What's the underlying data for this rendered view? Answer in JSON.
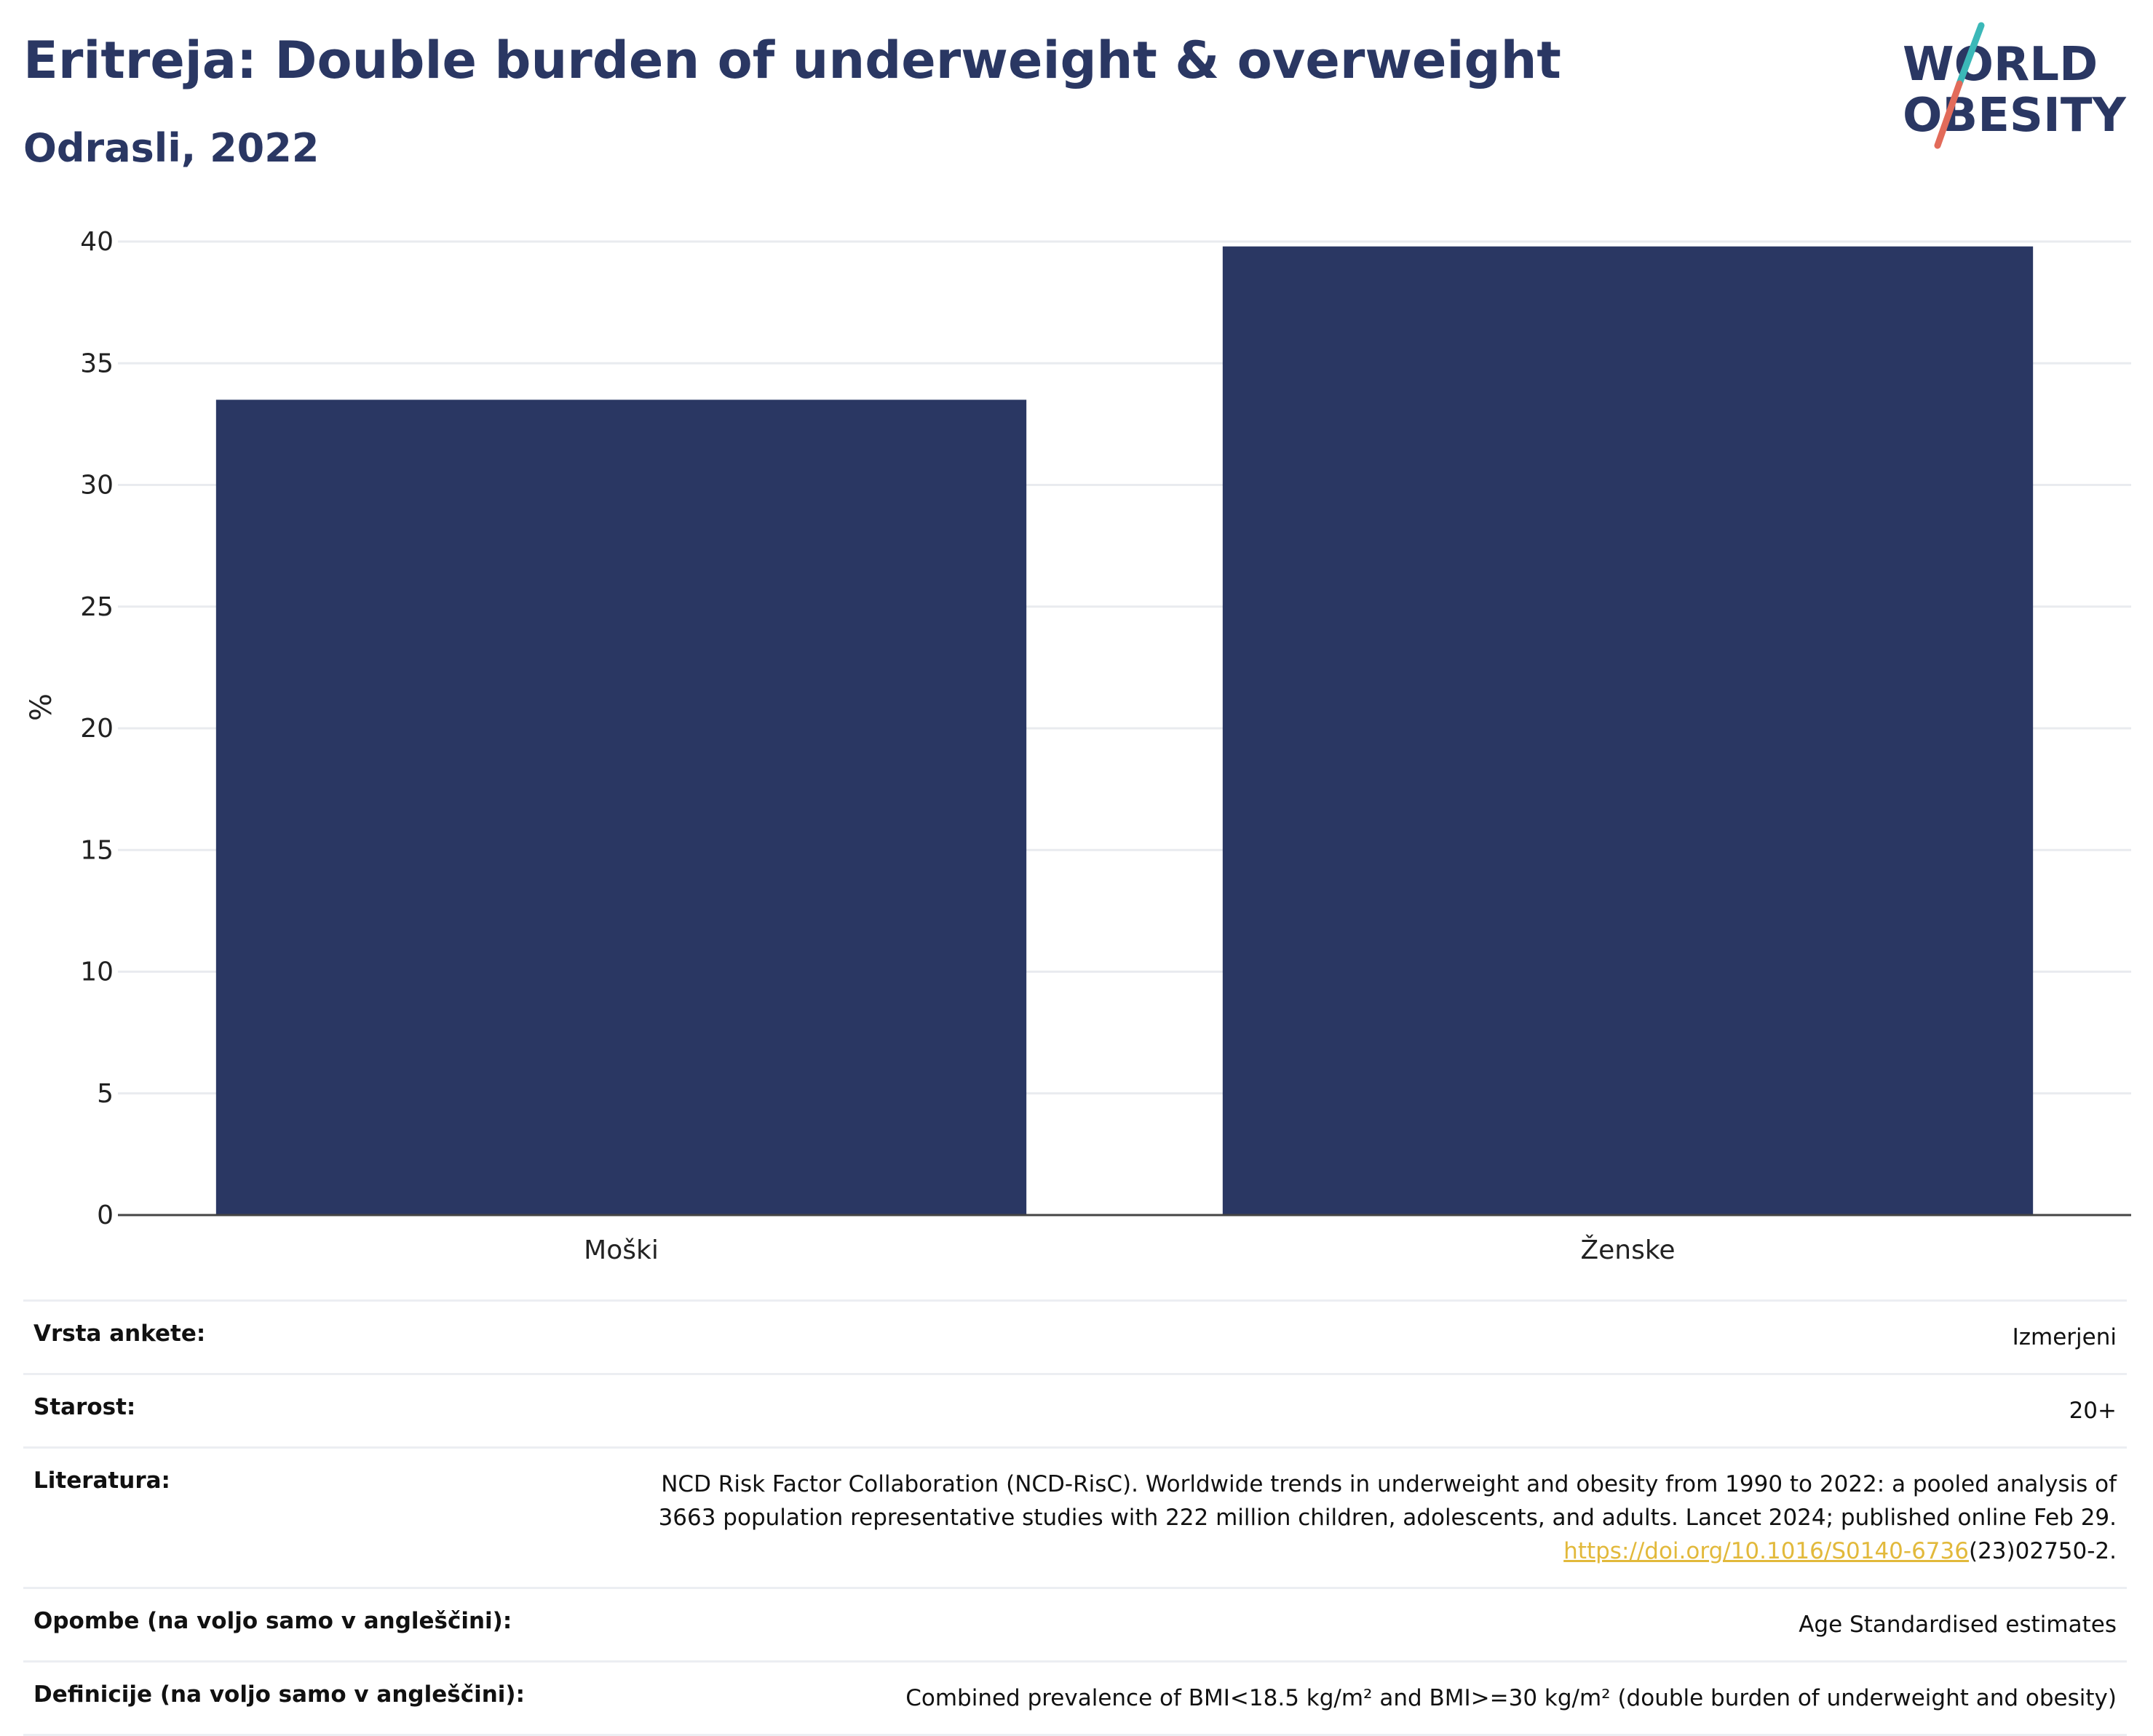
{
  "header": {
    "title": "Eritreja: Double burden of underweight & overweight",
    "subtitle": "Odrasli, 2022"
  },
  "logo": {
    "line1": "WORLD",
    "line2": "OBESITY",
    "colors": {
      "text": "#2a3763",
      "slash_top": "#3bb8b8",
      "slash_bottom": "#e26b5a"
    }
  },
  "chart_data": {
    "type": "bar",
    "categories": [
      "Moški",
      "Ženske"
    ],
    "values": [
      33.5,
      39.8
    ],
    "ylabel": "%",
    "xlabel": "",
    "ylim": [
      0,
      40
    ],
    "yticks": [
      0,
      5,
      10,
      15,
      20,
      25,
      30,
      35,
      40
    ],
    "grid": true,
    "bar_color": "#2a3763"
  },
  "meta": {
    "rows": [
      {
        "key": "Vrsta ankete:",
        "value": "Izmerjeni"
      },
      {
        "key": "Starost:",
        "value": "20+"
      },
      {
        "key": "Literatura:",
        "value_line1": "NCD Risk Factor Collaboration (NCD-RisC). Worldwide trends in underweight and obesity from 1990 to 2022: a pooled analysis of",
        "value_line2": "3663 population representative studies with 222 million children, adolescents, and adults. Lancet 2024; published online Feb 29.",
        "link": "https://doi.org/10.1016/S0140-6736",
        "link_suffix": "(23)02750-2."
      },
      {
        "key": "Opombe (na voljo samo v angleščini):",
        "value": "Age Standardised estimates"
      },
      {
        "key": "Definicije (na voljo samo v angleščini):",
        "value": "Combined prevalence of BMI<18.5 kg/m² and BMI>=30 kg/m² (double burden of underweight and obesity)"
      }
    ]
  }
}
